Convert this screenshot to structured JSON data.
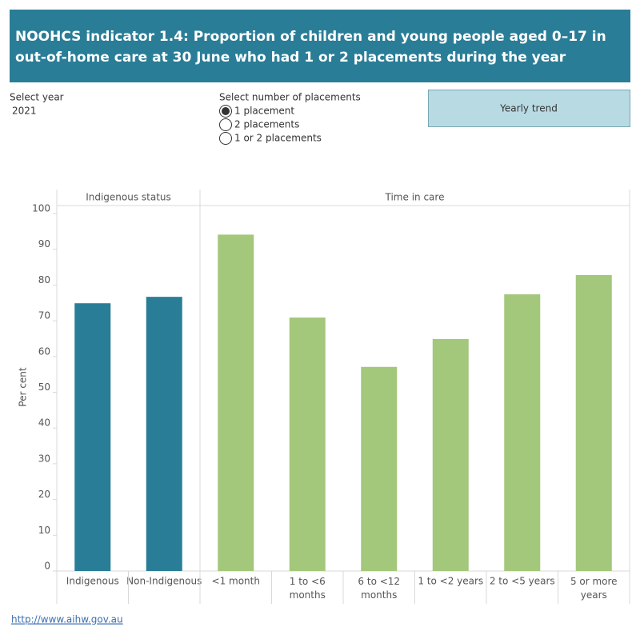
{
  "header": {
    "title_line1": "NOOHCS indicator 1.4: Proportion of children and young people aged 0–17  in",
    "title_line2": "out-of-home care at 30 June who had 1 or 2 placements during the year"
  },
  "controls": {
    "year_label": "Select year",
    "year_value": "2021",
    "placements_label": "Select number of placements",
    "placements_options": [
      "1 placement",
      "2 placements",
      "1 or 2 placements"
    ],
    "button": "Yearly trend"
  },
  "chart_data": {
    "type": "bar",
    "y_label": "Per cent",
    "ylim": [
      0,
      100
    ],
    "yticks": [
      0,
      10,
      20,
      30,
      40,
      50,
      60,
      70,
      80,
      90,
      100
    ],
    "panels": [
      {
        "title": "Indigenous status",
        "color": "#2a7d97",
        "categories": [
          "Indigenous",
          "Non-Indigenous"
        ],
        "values": [
          74.9,
          76.7
        ]
      },
      {
        "title": "Time in care",
        "color": "#a3c77b",
        "categories": [
          "<1 month",
          "1 to <6 months",
          "6 to <12 months",
          "1 to <2 years",
          "2 to <5 years",
          "5 or more years"
        ],
        "values": [
          94.1,
          70.9,
          57.1,
          64.9,
          77.4,
          82.8
        ]
      }
    ]
  },
  "footer": {
    "link": "http://www.aihw.gov.au"
  }
}
